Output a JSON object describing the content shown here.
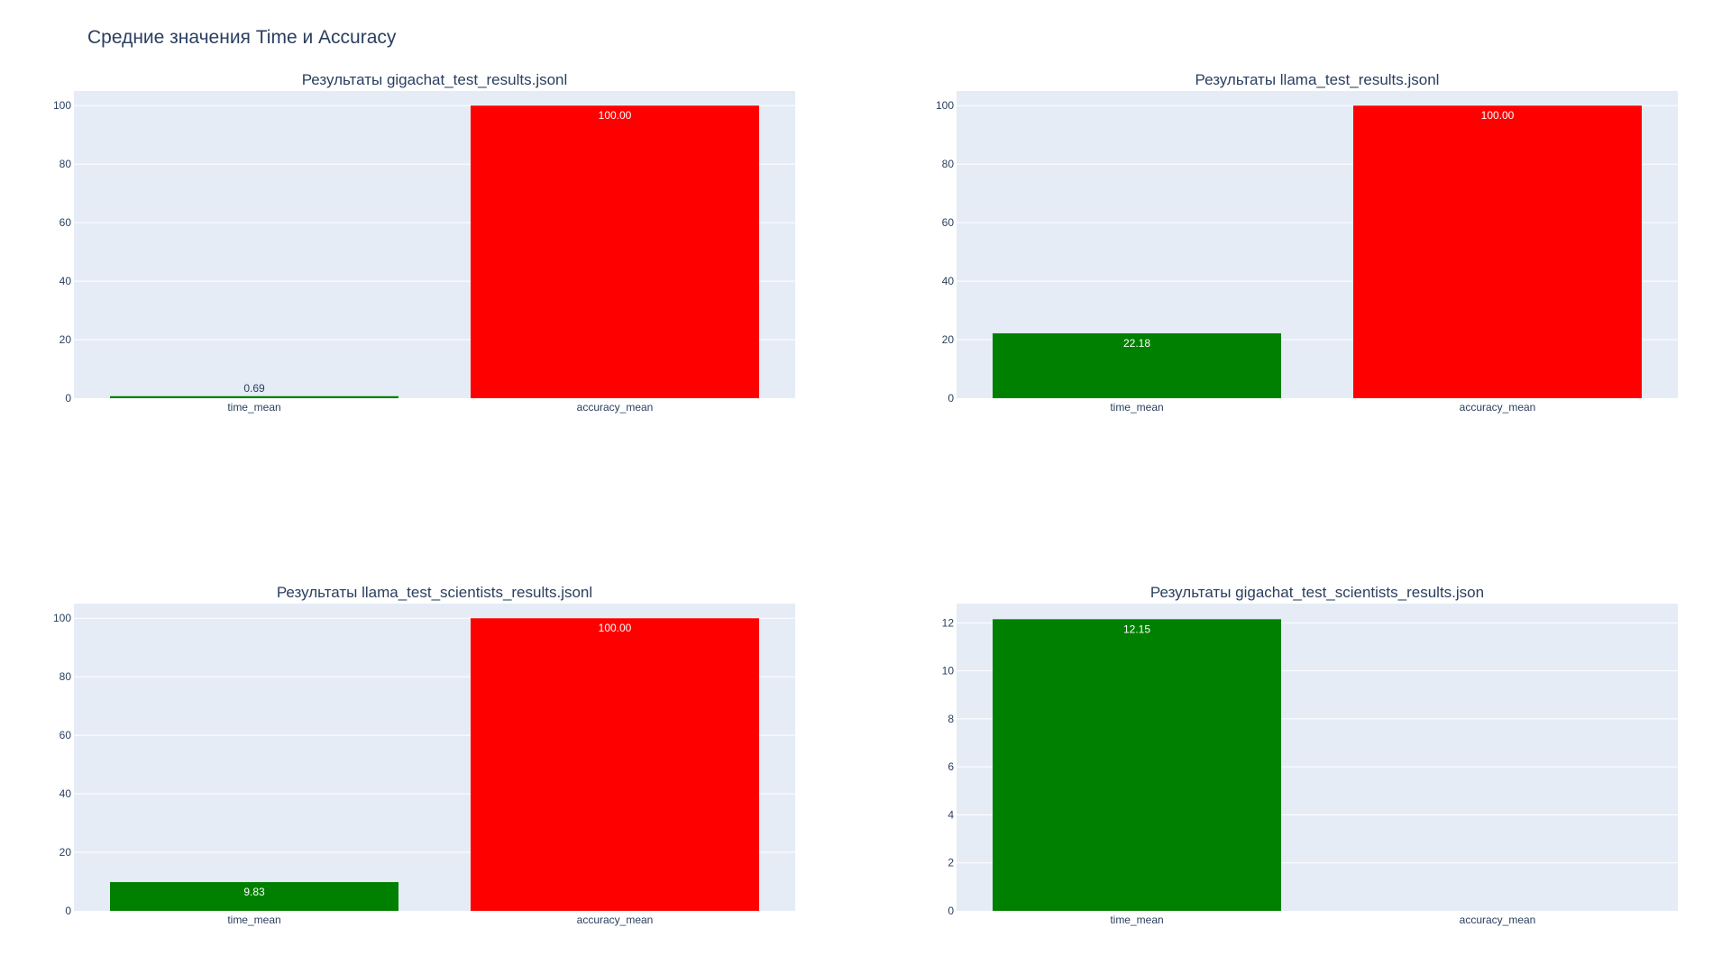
{
  "title": "Средние значения Time и Accuracy",
  "colors": {
    "time_mean": "#008000",
    "accuracy_mean": "#ff0000",
    "plot_bg": "#e5ecf6",
    "text": "#2a3f5f"
  },
  "chart_data": [
    {
      "type": "bar",
      "title": "Результаты gigachat_test_results.jsonl",
      "categories": [
        "time_mean",
        "accuracy_mean"
      ],
      "values": [
        0.69,
        100.0
      ],
      "value_labels": [
        "0.69",
        "100.00"
      ],
      "ylim": [
        0,
        105
      ],
      "yticks": [
        0,
        20,
        40,
        60,
        80,
        100
      ],
      "grid": true
    },
    {
      "type": "bar",
      "title": "Результаты llama_test_results.jsonl",
      "categories": [
        "time_mean",
        "accuracy_mean"
      ],
      "values": [
        22.18,
        100.0
      ],
      "value_labels": [
        "22.18",
        "100.00"
      ],
      "ylim": [
        0,
        105
      ],
      "yticks": [
        0,
        20,
        40,
        60,
        80,
        100
      ],
      "grid": true
    },
    {
      "type": "bar",
      "title": "Результаты llama_test_scientists_results.jsonl",
      "categories": [
        "time_mean",
        "accuracy_mean"
      ],
      "values": [
        9.83,
        100.0
      ],
      "value_labels": [
        "9.83",
        "100.00"
      ],
      "ylim": [
        0,
        105
      ],
      "yticks": [
        0,
        20,
        40,
        60,
        80,
        100
      ],
      "grid": true
    },
    {
      "type": "bar",
      "title": "Результаты gigachat_test_scientists_results.json",
      "categories": [
        "time_mean",
        "accuracy_mean"
      ],
      "values": [
        12.15,
        null
      ],
      "value_labels": [
        "12.15",
        ""
      ],
      "ylim": [
        0,
        12.8
      ],
      "yticks": [
        0,
        2,
        4,
        6,
        8,
        10,
        12
      ],
      "grid": true
    }
  ]
}
